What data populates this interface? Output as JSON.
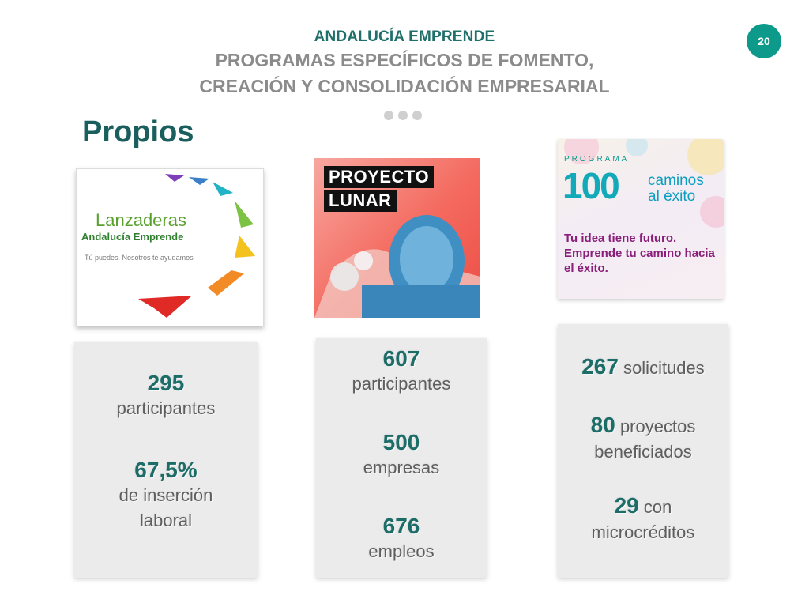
{
  "header": {
    "kicker": "ANDALUCÍA EMPRENDE",
    "title_line1": "PROGRAMAS ESPECÍFICOS DE FOMENTO,",
    "title_line2": "CREACIÓN Y CONSOLIDACIÓN EMPRESARIAL",
    "page_number": "20"
  },
  "section": {
    "title": "Propios"
  },
  "images": {
    "lanzaderas": {
      "title": "Lanzaderas",
      "subtitle": "Andalucía Emprende",
      "tagline": "Tú puedes. Nosotros te ayudamos"
    },
    "lunar": {
      "line1": "PROYECTO",
      "line2": "LUNAR"
    },
    "cien": {
      "programa": "PROGRAMA",
      "number": "100",
      "caminos": "caminos",
      "exito": "al éxito",
      "tagline": "Tu idea tiene futuro. Emprende tu camino hacia el éxito."
    }
  },
  "stats": {
    "lanzaderas": {
      "n1": "295",
      "t1": "participantes",
      "n2": "67,5%",
      "t2a": "de inserción",
      "t2b": "laboral"
    },
    "lunar": {
      "n1": "607",
      "t1": "participantes",
      "n2": "500",
      "t2": "empresas",
      "n3": "676",
      "t3": "empleos"
    },
    "cien": {
      "n1": "267",
      "t1": "solicitudes",
      "n2": "80",
      "t2a": "proyectos",
      "t2b": "beneficiados",
      "n3": "29",
      "t3a": "con",
      "t3b": "microcréditos"
    }
  },
  "colors": {
    "accent": "#1c6c68",
    "badge": "#0e9a8a",
    "title_gray": "#8b8b8b"
  }
}
